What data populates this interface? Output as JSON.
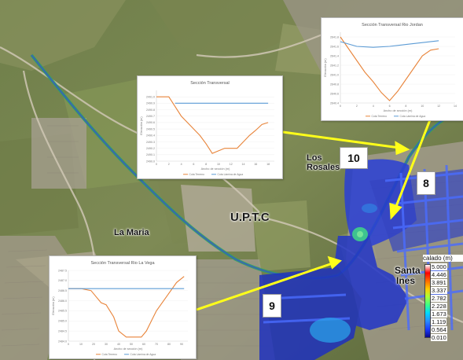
{
  "map": {
    "places": {
      "la_maria": "La Maria",
      "uptc": "U.P.T.C",
      "los_rosales_line1": "Los",
      "los_rosales_line2": "Rosales",
      "santa_ines_line1": "Santa",
      "santa_ines_line2": "Ines"
    },
    "callouts": {
      "c8": "8",
      "c9": "9",
      "c10": "10"
    },
    "legend": {
      "title": "calado (m)",
      "values": [
        "5.000",
        "4.446",
        "3.891",
        "3.337",
        "2.782",
        "2.228",
        "1.673",
        "1.119",
        "0.564",
        "0.010"
      ],
      "colors": [
        "#ffffff",
        "#ff0000",
        "#ff6a00",
        "#ffcc00",
        "#a8ff3a",
        "#3aff8a",
        "#00d8ff",
        "#2a8cff",
        "#1a3cff",
        "#0a0a8c"
      ]
    }
  },
  "chart_data": [
    {
      "type": "line",
      "title": "Sección Transversal",
      "xlabel": "Ancho de sección (m)",
      "ylabel": "Elevación (m)",
      "x_ticks": [
        "0",
        "2",
        "4",
        "6",
        "8",
        "10",
        "12",
        "14",
        "16",
        "18"
      ],
      "y_ticks": [
        "2491.0",
        "2490.9",
        "2490.8",
        "2490.7",
        "2490.6",
        "2490.5",
        "2490.4",
        "2490.3",
        "2490.2",
        "2490.1",
        "2490.0"
      ],
      "xlim": [
        0,
        19
      ],
      "ylim": [
        2490.0,
        2491.1
      ],
      "series": [
        {
          "name": "Cota Terreno",
          "color": "#e8843a",
          "x": [
            0,
            1,
            2,
            3,
            4,
            5,
            6,
            7,
            8,
            9,
            10,
            11,
            12,
            13,
            14,
            15,
            16,
            17,
            18
          ],
          "y": [
            2491.0,
            2491.0,
            2491.0,
            2490.85,
            2490.7,
            2490.6,
            2490.5,
            2490.4,
            2490.27,
            2490.12,
            2490.16,
            2490.2,
            2490.2,
            2490.2,
            2490.3,
            2490.4,
            2490.48,
            2490.57,
            2490.6
          ]
        },
        {
          "name": "Cota Lámina de Agua",
          "color": "#5b9bd5",
          "x": [
            3,
            18
          ],
          "y": [
            2490.9,
            2490.9
          ]
        }
      ]
    },
    {
      "type": "line",
      "title": "Sección Transversal Rio Jordan",
      "xlabel": "Ancho de sección (m)",
      "ylabel": "Elevación (m)",
      "x_ticks": [
        "0",
        "2",
        "4",
        "6",
        "8",
        "10",
        "12",
        "14"
      ],
      "y_ticks": [
        "2641.8",
        "2641.6",
        "2641.4",
        "2641.2",
        "2641.0",
        "2640.8",
        "2640.6",
        "2640.4"
      ],
      "xlim": [
        0,
        14
      ],
      "ylim": [
        2640.4,
        2641.9
      ],
      "series": [
        {
          "name": "Cota Terreno",
          "color": "#e8843a",
          "x": [
            0,
            1,
            2,
            3,
            4,
            5,
            6,
            7,
            8,
            9,
            10,
            11,
            12
          ],
          "y": [
            2641.8,
            2641.55,
            2641.3,
            2641.05,
            2640.85,
            2640.62,
            2640.45,
            2640.65,
            2640.9,
            2641.15,
            2641.4,
            2641.52,
            2641.55
          ]
        },
        {
          "name": "Cota Lámina de Agua",
          "color": "#5b9bd5",
          "x": [
            0,
            2,
            4,
            6,
            8,
            10,
            12
          ],
          "y": [
            2641.7,
            2641.6,
            2641.58,
            2641.6,
            2641.64,
            2641.68,
            2641.72
          ]
        }
      ]
    },
    {
      "type": "line",
      "title": "Sección Transversal Rio La Vega",
      "xlabel": "Ancho de sección (m)",
      "ylabel": "Elevación (m)",
      "x_ticks": [
        "0",
        "10",
        "20",
        "30",
        "40",
        "50",
        "60",
        "70",
        "80",
        "90"
      ],
      "y_ticks": [
        "2487.5",
        "2487.0",
        "2486.5",
        "2486.0",
        "2485.5",
        "2485.0",
        "2484.5",
        "2484.0"
      ],
      "xlim": [
        0,
        95
      ],
      "ylim": [
        2484.0,
        2487.5
      ],
      "series": [
        {
          "name": "Cota Terreno",
          "color": "#e8843a",
          "x": [
            0,
            10,
            18,
            22,
            26,
            30,
            33,
            36,
            40,
            46,
            52,
            58,
            62,
            66,
            70,
            78,
            86,
            92
          ],
          "y": [
            2486.6,
            2486.6,
            2486.5,
            2486.2,
            2485.9,
            2485.8,
            2485.5,
            2485.2,
            2484.5,
            2484.2,
            2484.2,
            2484.2,
            2484.5,
            2485.0,
            2485.5,
            2486.2,
            2486.9,
            2487.2
          ]
        },
        {
          "name": "Cota Lámina de Agua",
          "color": "#5b9bd5",
          "x": [
            0,
            92
          ],
          "y": [
            2486.6,
            2486.6
          ]
        }
      ]
    }
  ]
}
